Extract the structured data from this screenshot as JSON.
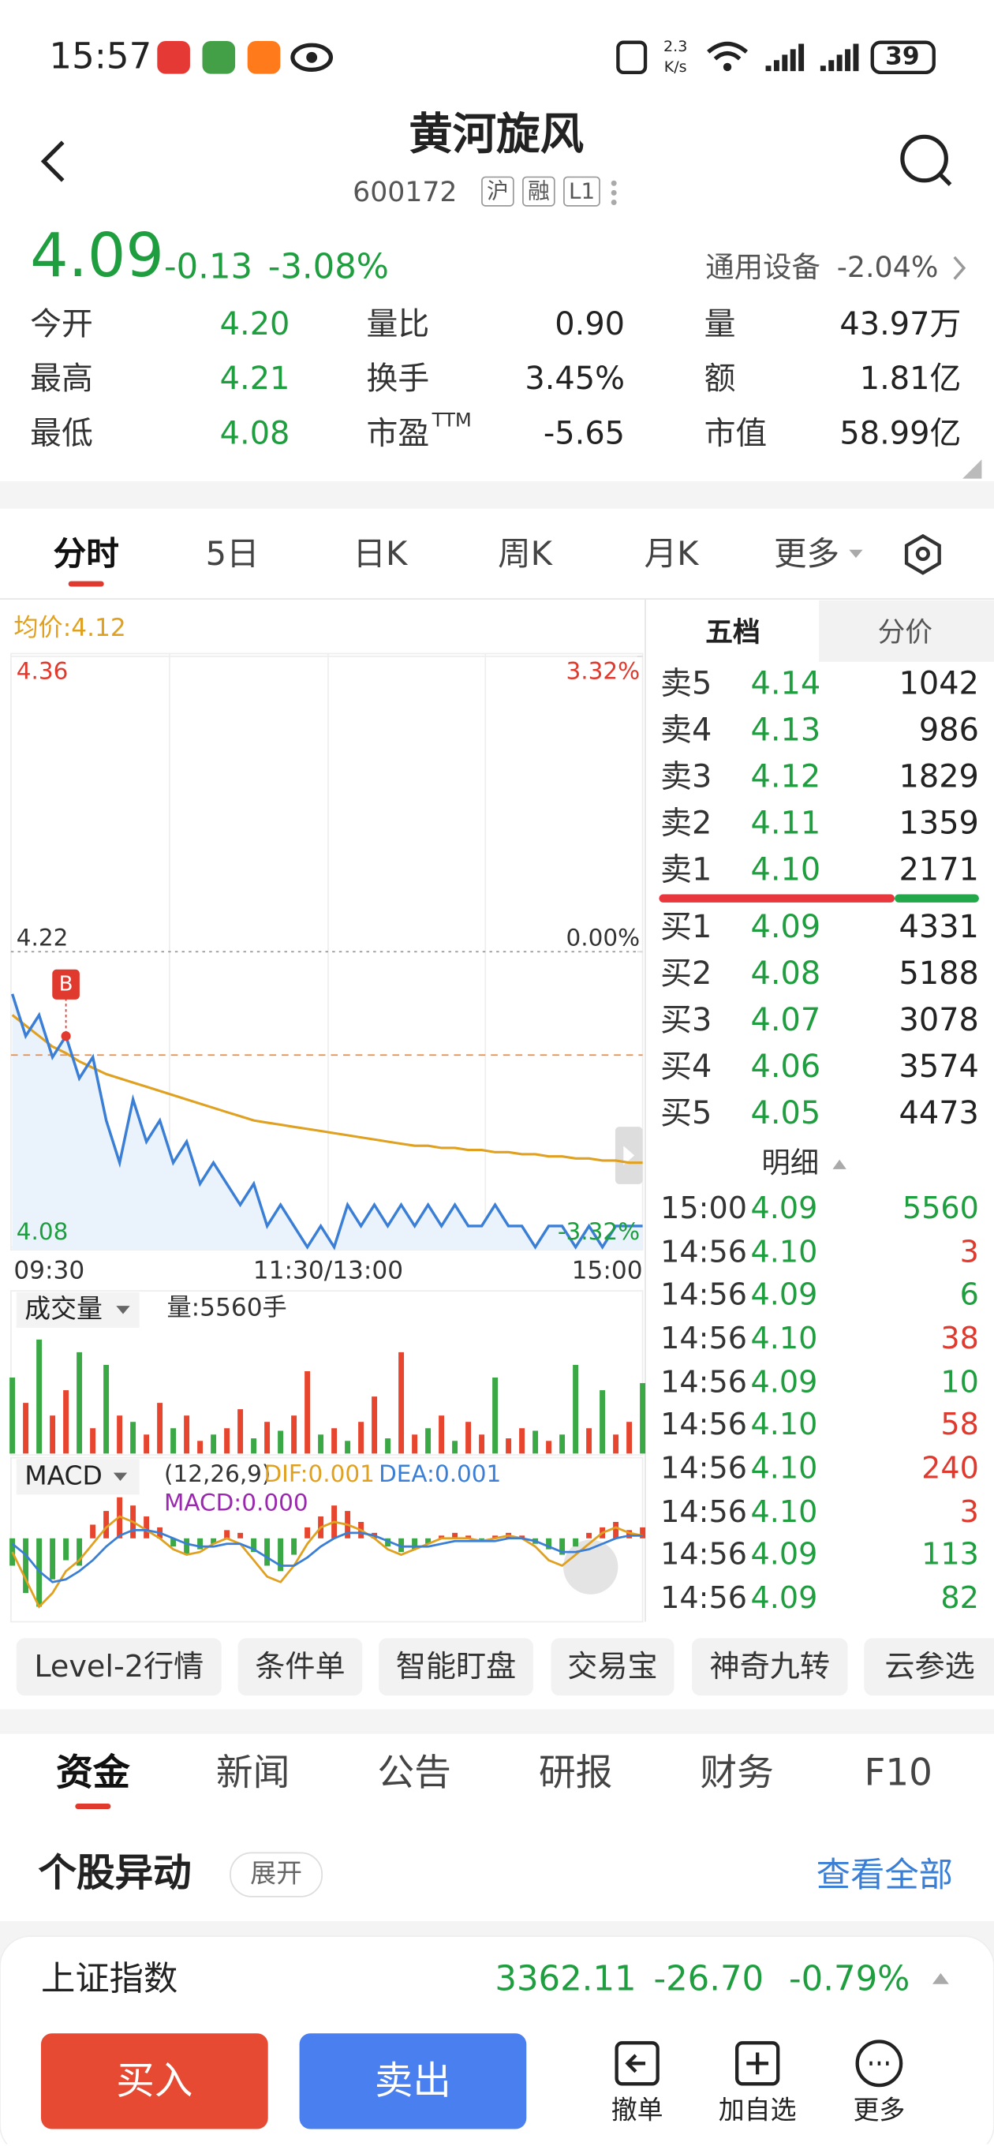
{
  "status_bar": {
    "time": "15:57",
    "net_speed": "2.3",
    "net_unit": "K/s",
    "battery": "39"
  },
  "header": {
    "title": "黄河旋风",
    "code": "600172",
    "tags": [
      "沪",
      "融",
      "L1"
    ]
  },
  "quote": {
    "price": "4.09",
    "change": "-0.13",
    "change_pct": "-3.08%",
    "sector": "通用设备",
    "sector_pct": "-2.04%",
    "stats": [
      [
        {
          "label": "今开",
          "value": "4.20",
          "color": "#1e9e3e"
        },
        {
          "label": "量比",
          "value": "0.90"
        },
        {
          "label": "量",
          "value": "43.97万"
        }
      ],
      [
        {
          "label": "最高",
          "value": "4.21",
          "color": "#1e9e3e"
        },
        {
          "label": "换手",
          "value": "3.45%"
        },
        {
          "label": "额",
          "value": "1.81亿"
        }
      ],
      [
        {
          "label": "最低",
          "value": "4.08",
          "color": "#1e9e3e"
        },
        {
          "label": "市盈",
          "label_sup": "TTM",
          "value": "-5.65"
        },
        {
          "label": "市值",
          "value": "58.99亿"
        }
      ]
    ]
  },
  "tabs": {
    "items": [
      "分时",
      "5日",
      "日K",
      "周K",
      "月K",
      "更多"
    ],
    "active": 0
  },
  "intraday": {
    "avg_label": "均价:4.12",
    "ylim": [
      4.08,
      4.36
    ],
    "yticks": [
      4.08,
      4.22,
      4.36
    ],
    "y2lim": [
      -3.32,
      3.32
    ],
    "y2ticks": [
      {
        "value": -3.32,
        "label": "-3.32%"
      },
      {
        "value": 0,
        "label": "0.00%"
      },
      {
        "value": 3.32,
        "label": "3.32%"
      }
    ],
    "time_labels": [
      "09:30",
      "11:30/13:00",
      "15:00"
    ],
    "price": {
      "color": "#3a7fd5",
      "values": [
        4.2,
        4.18,
        4.19,
        4.17,
        4.18,
        4.16,
        4.17,
        4.14,
        4.12,
        4.15,
        4.13,
        4.14,
        4.12,
        4.13,
        4.11,
        4.12,
        4.11,
        4.1,
        4.11,
        4.09,
        4.1,
        4.09,
        4.08,
        4.09,
        4.08,
        4.1,
        4.09,
        4.1,
        4.09,
        4.1,
        4.09,
        4.1,
        4.09,
        4.1,
        4.09,
        4.09,
        4.1,
        4.09,
        4.09,
        4.08,
        4.09,
        4.09,
        4.08,
        4.09,
        4.08,
        4.09,
        4.09,
        4.09
      ]
    },
    "avg": {
      "color": "#e0a020",
      "values": [
        4.19,
        4.185,
        4.18,
        4.175,
        4.172,
        4.168,
        4.165,
        4.162,
        4.16,
        4.158,
        4.156,
        4.154,
        4.152,
        4.15,
        4.148,
        4.146,
        4.144,
        4.142,
        4.14,
        4.139,
        4.138,
        4.137,
        4.136,
        4.135,
        4.134,
        4.133,
        4.132,
        4.131,
        4.13,
        4.129,
        4.128,
        4.128,
        4.127,
        4.127,
        4.126,
        4.126,
        4.125,
        4.125,
        4.124,
        4.124,
        4.123,
        4.123,
        4.122,
        4.122,
        4.121,
        4.121,
        4.12,
        4.12
      ]
    },
    "cost_line": 4.171,
    "trade_marker": {
      "label": "B",
      "index": 4
    }
  },
  "volume": {
    "title": "成交量",
    "label": "量:5560手",
    "ylim": [
      0,
      9500
    ],
    "values": [
      6000,
      4000,
      9000,
      3000,
      5000,
      8000,
      2000,
      7000,
      3000,
      2500,
      1500,
      4000,
      2000,
      3000,
      1000,
      1500,
      2000,
      3500,
      1200,
      2500,
      1800,
      3000,
      6500,
      1500,
      2000,
      1000,
      2500,
      4500,
      1200,
      8000,
      1500,
      2000,
      3000,
      1000,
      2500,
      1500,
      6000,
      1200,
      2000,
      1800,
      1000,
      1500,
      7000,
      2000,
      5000,
      1500,
      2500,
      5560
    ],
    "colors": [
      "#3aa845",
      "#e8452f",
      "#3aa845",
      "#e8452f",
      "#e8452f",
      "#3aa845",
      "#e8452f",
      "#3aa845",
      "#e8452f",
      "#3aa845",
      "#e8452f",
      "#e8452f",
      "#3aa845",
      "#e8452f",
      "#e8452f",
      "#3aa845",
      "#e8452f",
      "#e8452f",
      "#3aa845",
      "#e8452f",
      "#3aa845",
      "#e8452f",
      "#e8452f",
      "#3aa845",
      "#e8452f",
      "#3aa845",
      "#e8452f",
      "#e8452f",
      "#3aa845",
      "#e8452f",
      "#e8452f",
      "#3aa845",
      "#e8452f",
      "#3aa845",
      "#e8452f",
      "#e8452f",
      "#3aa845",
      "#e8452f",
      "#e8452f",
      "#3aa845",
      "#e8452f",
      "#3aa845",
      "#3aa845",
      "#e8452f",
      "#3aa845",
      "#e8452f",
      "#e8452f",
      "#3aa845"
    ]
  },
  "macd": {
    "title": "MACD",
    "params": "(12,26,9)",
    "dif_label": "DIF:0.001",
    "dea_label": "DEA:0.001",
    "macd_label": "MACD:0.000",
    "ylim": [
      -0.03,
      0.0175
    ],
    "up_color": "#e8452f",
    "down_color": "#3aa845",
    "dif_color": "#e0a020",
    "dea_color": "#3a7fd5",
    "bars": [
      -0.01,
      -0.02,
      -0.025,
      -0.015,
      -0.008,
      -0.01,
      0.005,
      0.01,
      0.015,
      0.012,
      0.008,
      0.004,
      -0.003,
      -0.006,
      -0.004,
      -0.002,
      0.003,
      0.002,
      -0.005,
      -0.01,
      -0.012,
      -0.006,
      0.004,
      0.008,
      0.012,
      0.01,
      0.006,
      0.002,
      -0.003,
      -0.005,
      -0.004,
      -0.002,
      0.001,
      0.002,
      0.001,
      -0.001,
      0.001,
      0.002,
      0.001,
      -0.002,
      -0.004,
      -0.006,
      -0.003,
      0.002,
      0.004,
      0.006,
      0.003,
      0.004
    ],
    "dif": [
      -0.005,
      -0.015,
      -0.025,
      -0.02,
      -0.012,
      -0.008,
      -0.002,
      0.004,
      0.008,
      0.006,
      0.003,
      0,
      -0.004,
      -0.006,
      -0.005,
      -0.002,
      0,
      -0.002,
      -0.008,
      -0.014,
      -0.016,
      -0.01,
      -0.002,
      0.004,
      0.006,
      0.005,
      0.003,
      0,
      -0.004,
      -0.006,
      -0.004,
      -0.002,
      0,
      0,
      0,
      -0.001,
      0,
      0.001,
      0,
      -0.003,
      -0.008,
      -0.01,
      -0.006,
      -0.002,
      0.002,
      0.004,
      0.002,
      0.001
    ],
    "dea": [
      -0.002,
      -0.006,
      -0.012,
      -0.016,
      -0.015,
      -0.012,
      -0.008,
      -0.003,
      0.001,
      0.003,
      0.003,
      0.002,
      0,
      -0.002,
      -0.003,
      -0.003,
      -0.002,
      -0.002,
      -0.004,
      -0.007,
      -0.01,
      -0.01,
      -0.007,
      -0.003,
      0,
      0.002,
      0.002,
      0.001,
      -0.001,
      -0.003,
      -0.003,
      -0.003,
      -0.002,
      -0.001,
      -0.001,
      -0.001,
      -0.001,
      0,
      0,
      -0.001,
      -0.003,
      -0.005,
      -0.005,
      -0.004,
      -0.002,
      0,
      0.001,
      0.001
    ]
  },
  "orderbook": {
    "tabs": [
      "五档",
      "分价"
    ],
    "asks": [
      {
        "label": "卖5",
        "price": "4.14",
        "volume": 1042
      },
      {
        "label": "卖4",
        "price": "4.13",
        "volume": 986
      },
      {
        "label": "卖3",
        "price": "4.12",
        "volume": 1829
      },
      {
        "label": "卖2",
        "price": "4.11",
        "volume": 1359
      },
      {
        "label": "卖1",
        "price": "4.10",
        "volume": 2171
      }
    ],
    "bids": [
      {
        "label": "买1",
        "price": "4.09",
        "volume": 4331
      },
      {
        "label": "买2",
        "price": "4.08",
        "volume": 5188
      },
      {
        "label": "买3",
        "price": "4.07",
        "volume": 3078
      },
      {
        "label": "买4",
        "price": "4.06",
        "volume": 3574
      },
      {
        "label": "买5",
        "price": "4.05",
        "volume": 4473
      }
    ]
  },
  "detail": {
    "title": "明细",
    "trades": [
      {
        "time": "15:00",
        "price": "4.09",
        "volume": 5560,
        "color": "#1e9e3e"
      },
      {
        "time": "14:56",
        "price": "4.10",
        "volume": 3,
        "color": "#e03a2e"
      },
      {
        "time": "14:56",
        "price": "4.09",
        "volume": 6,
        "color": "#1e9e3e"
      },
      {
        "time": "14:56",
        "price": "4.10",
        "volume": 38,
        "color": "#e03a2e"
      },
      {
        "time": "14:56",
        "price": "4.09",
        "volume": 10,
        "color": "#1e9e3e"
      },
      {
        "time": "14:56",
        "price": "4.10",
        "volume": 58,
        "color": "#e03a2e"
      },
      {
        "time": "14:56",
        "price": "4.10",
        "volume": 240,
        "color": "#e03a2e"
      },
      {
        "time": "14:56",
        "price": "4.10",
        "volume": 3,
        "color": "#e03a2e"
      },
      {
        "time": "14:56",
        "price": "4.09",
        "volume": 113,
        "color": "#1e9e3e"
      },
      {
        "time": "14:56",
        "price": "4.09",
        "volume": 82,
        "color": "#1e9e3e"
      }
    ]
  },
  "tools": [
    "Level-2行情",
    "条件单",
    "智能盯盘",
    "交易宝",
    "神奇九转",
    "云参选"
  ],
  "info_tabs": {
    "items": [
      "资金",
      "新闻",
      "公告",
      "研报",
      "财务",
      "F10"
    ],
    "active": 0
  },
  "section": {
    "title": "个股异动",
    "expand": "展开",
    "more": "查看全部"
  },
  "index_bar": {
    "name": "上证指数",
    "value": "3362.11",
    "change": "-26.70",
    "change_pct": "-0.79%"
  },
  "actions": {
    "buy": "买入",
    "sell": "卖出",
    "items": [
      "撤单",
      "加自选",
      "更多"
    ]
  }
}
